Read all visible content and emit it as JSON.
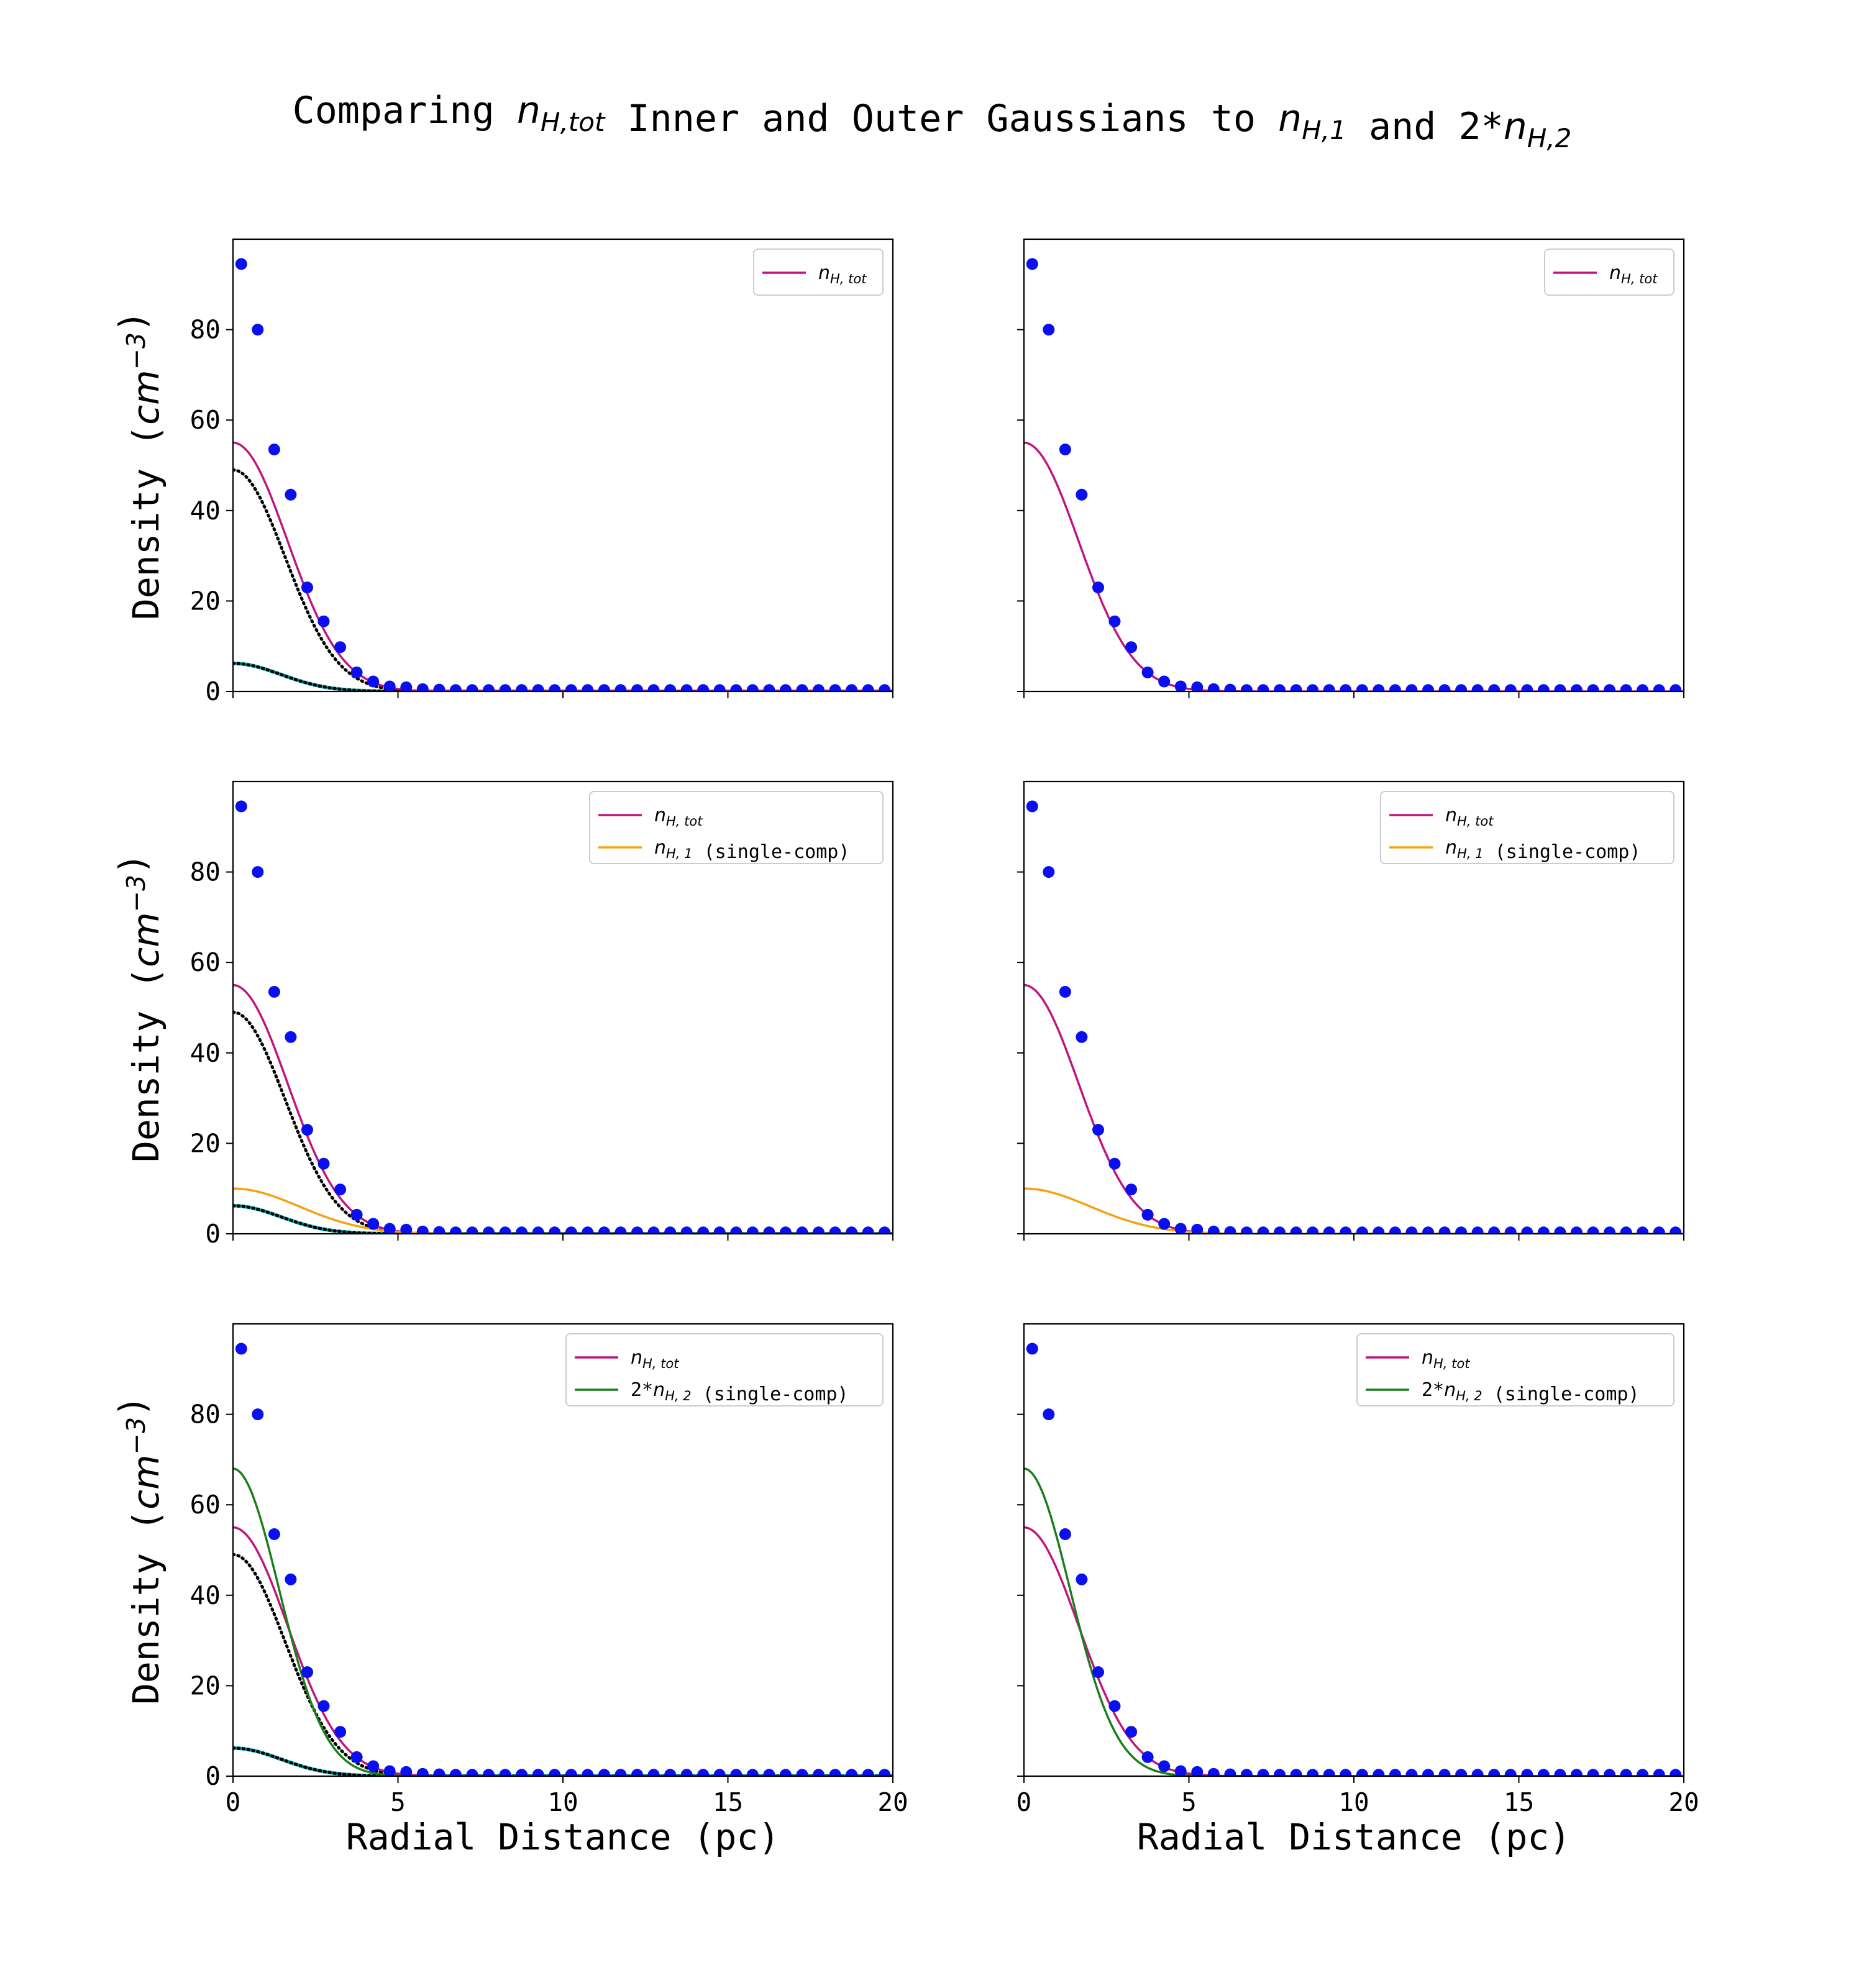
{
  "figure": {
    "title_parts": [
      {
        "text": "Comparing ",
        "style": "normal"
      },
      {
        "text": "n",
        "style": "italic"
      },
      {
        "text": "H,tot",
        "style": "italic-sub"
      },
      {
        "text": " Inner and Outer Gaussians to ",
        "style": "normal"
      },
      {
        "text": "n",
        "style": "italic"
      },
      {
        "text": "H,1",
        "style": "italic-sub"
      },
      {
        "text": " and 2*",
        "style": "normal"
      },
      {
        "text": "n",
        "style": "italic"
      },
      {
        "text": "H,2",
        "style": "italic-sub"
      }
    ]
  },
  "legend_labels": {
    "ntot": [
      {
        "text": "n",
        "style": "italic"
      },
      {
        "text": "H, tot",
        "style": "italic-sub"
      }
    ],
    "n1": [
      {
        "text": "n",
        "style": "italic"
      },
      {
        "text": "H, 1",
        "style": "italic-sub"
      },
      {
        "text": " (single-comp)",
        "style": "normal"
      }
    ],
    "n2": [
      {
        "text": "2*",
        "style": "normal"
      },
      {
        "text": "n",
        "style": "italic"
      },
      {
        "text": "H, 2",
        "style": "italic-sub"
      },
      {
        "text": " (single-comp)",
        "style": "normal"
      }
    ]
  },
  "axis_text": {
    "ylabel_parts": [
      {
        "text": "Density (",
        "style": "normal"
      },
      {
        "text": "cm",
        "style": "italic"
      },
      {
        "text": "−3",
        "style": "italic-sup"
      },
      {
        "text": ")",
        "style": "normal"
      }
    ],
    "xlabel": "Radial Distance (pc)"
  },
  "colors": {
    "ntot": "#c0157e",
    "n1": "#f5a211",
    "n2": "#1a7f1a",
    "points": "#0a0ff0",
    "dotted": "#000000",
    "inner_cyan": "#17bfcf"
  },
  "chart_data": [
    {
      "type": "line",
      "panel": "row1-left",
      "xlim": [
        0,
        20
      ],
      "ylim": [
        0,
        100
      ],
      "xticks": [
        0,
        5,
        10,
        15,
        20
      ],
      "yticks": [
        0,
        20,
        40,
        60,
        80
      ],
      "show_xticklabels": false,
      "show_yticklabels": true,
      "ylabel": true,
      "xlabel": false,
      "legend": [
        "ntot"
      ],
      "legend_position": "top-right",
      "show_components": true,
      "curves": [
        "ntot"
      ]
    },
    {
      "type": "line",
      "panel": "row1-right",
      "xlim": [
        0,
        20
      ],
      "ylim": [
        0,
        100
      ],
      "xticks": [
        0,
        5,
        10,
        15,
        20
      ],
      "yticks": [
        0,
        20,
        40,
        60,
        80
      ],
      "show_xticklabels": false,
      "show_yticklabels": false,
      "ylabel": false,
      "xlabel": false,
      "legend": [
        "ntot"
      ],
      "legend_position": "top-right",
      "show_components": false,
      "curves": [
        "ntot"
      ]
    },
    {
      "type": "line",
      "panel": "row2-left",
      "xlim": [
        0,
        20
      ],
      "ylim": [
        0,
        100
      ],
      "xticks": [
        0,
        5,
        10,
        15,
        20
      ],
      "yticks": [
        0,
        20,
        40,
        60,
        80
      ],
      "show_xticklabels": false,
      "show_yticklabels": true,
      "ylabel": true,
      "xlabel": false,
      "legend": [
        "ntot",
        "n1"
      ],
      "legend_position": "top-right",
      "show_components": true,
      "curves": [
        "ntot",
        "n1"
      ]
    },
    {
      "type": "line",
      "panel": "row2-right",
      "xlim": [
        0,
        20
      ],
      "ylim": [
        0,
        100
      ],
      "xticks": [
        0,
        5,
        10,
        15,
        20
      ],
      "yticks": [
        0,
        20,
        40,
        60,
        80
      ],
      "show_xticklabels": false,
      "show_yticklabels": false,
      "ylabel": false,
      "xlabel": false,
      "legend": [
        "ntot",
        "n1"
      ],
      "legend_position": "top-right",
      "show_components": false,
      "curves": [
        "ntot",
        "n1"
      ]
    },
    {
      "type": "line",
      "panel": "row3-left",
      "xlim": [
        0,
        20
      ],
      "ylim": [
        0,
        100
      ],
      "xticks": [
        0,
        5,
        10,
        15,
        20
      ],
      "yticks": [
        0,
        20,
        40,
        60,
        80
      ],
      "show_xticklabels": true,
      "show_yticklabels": true,
      "ylabel": true,
      "xlabel": true,
      "legend": [
        "ntot",
        "n2"
      ],
      "legend_position": "top-right",
      "show_components": true,
      "curves": [
        "ntot",
        "n2"
      ]
    },
    {
      "type": "line",
      "panel": "row3-right",
      "xlim": [
        0,
        20
      ],
      "ylim": [
        0,
        100
      ],
      "xticks": [
        0,
        5,
        10,
        15,
        20
      ],
      "yticks": [
        0,
        20,
        40,
        60,
        80
      ],
      "show_xticklabels": true,
      "show_yticklabels": false,
      "ylabel": false,
      "xlabel": true,
      "legend": [
        "ntot",
        "n2"
      ],
      "legend_position": "top-right",
      "show_components": false,
      "curves": [
        "ntot",
        "n2"
      ]
    }
  ],
  "series_values": {
    "points": {
      "x": [
        0.25,
        0.75,
        1.25,
        1.75,
        2.25,
        2.75,
        3.25,
        3.75,
        4.25,
        4.75,
        5.25,
        5.75,
        6.25,
        6.75,
        7.25,
        7.75,
        8.25,
        8.75,
        9.25,
        9.75,
        10.25,
        10.75,
        11.25,
        11.75,
        12.25,
        12.75,
        13.25,
        13.75,
        14.25,
        14.75,
        15.25,
        15.75,
        16.25,
        16.75,
        17.25,
        17.75,
        18.25,
        18.75,
        19.25,
        19.75
      ],
      "y": [
        94.5,
        80.0,
        53.5,
        43.5,
        23.0,
        15.5,
        9.8,
        4.2,
        2.2,
        1.1,
        0.9,
        0.5,
        0.4,
        0.3,
        0.3,
        0.3,
        0.3,
        0.3,
        0.3,
        0.3,
        0.3,
        0.3,
        0.3,
        0.3,
        0.3,
        0.3,
        0.3,
        0.3,
        0.3,
        0.3,
        0.3,
        0.3,
        0.3,
        0.3,
        0.3,
        0.3,
        0.3,
        0.3,
        0.3,
        0.3
      ]
    },
    "gaussians": {
      "ntot": {
        "amplitude": 55,
        "sigma": 1.65
      },
      "n1": {
        "amplitude": 10,
        "sigma": 2.0
      },
      "n2": {
        "amplitude": 68,
        "sigma": 1.4
      },
      "inner": {
        "amplitude": 49,
        "sigma": 1.58
      },
      "outer": {
        "amplitude": 6.2,
        "sigma": 1.45
      }
    }
  }
}
